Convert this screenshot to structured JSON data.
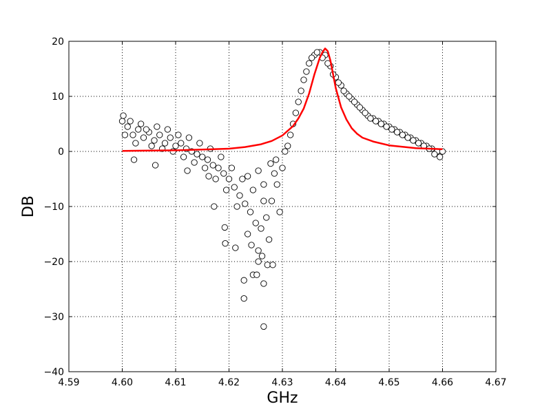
{
  "chart_data": {
    "type": "scatter",
    "title": "",
    "xlabel": "GHz",
    "ylabel": "DB",
    "xlim": [
      4.59,
      4.67
    ],
    "ylim": [
      -40,
      20
    ],
    "xticks": [
      4.59,
      4.6,
      4.61,
      4.62,
      4.63,
      4.64,
      4.65,
      4.66,
      4.67
    ],
    "xtick_labels": [
      "4.59",
      "4.60",
      "4.61",
      "4.62",
      "4.63",
      "4.64",
      "4.65",
      "4.66",
      "4.67"
    ],
    "yticks": [
      20,
      10,
      0,
      -10,
      -20,
      -30,
      -40
    ],
    "ytick_labels": [
      "20",
      "10",
      "0",
      "−10",
      "−20",
      "−30",
      "−40"
    ],
    "grid": true,
    "grid_style": "dotted",
    "series": [
      {
        "kind": "scatter",
        "marker": "open-circle",
        "color": "#000000",
        "points": [
          [
            4.6,
            5.5
          ],
          [
            4.601,
            4.5
          ],
          [
            4.602,
            3.0
          ],
          [
            4.603,
            4.0
          ],
          [
            4.604,
            2.5
          ],
          [
            4.605,
            3.5
          ],
          [
            4.606,
            2.0
          ],
          [
            4.607,
            3.0
          ],
          [
            4.608,
            1.5
          ],
          [
            4.609,
            2.5
          ],
          [
            4.61,
            1.0
          ],
          [
            4.611,
            1.5
          ],
          [
            4.612,
            0.5
          ],
          [
            4.613,
            0.0
          ],
          [
            4.614,
            -0.5
          ],
          [
            4.615,
            -1.0
          ],
          [
            4.616,
            -1.5
          ],
          [
            4.617,
            -2.5
          ],
          [
            4.618,
            -3.0
          ],
          [
            4.619,
            -4.0
          ],
          [
            4.62,
            -5.0
          ],
          [
            4.621,
            -6.5
          ],
          [
            4.622,
            -8.0
          ],
          [
            4.623,
            -9.5
          ],
          [
            4.624,
            -11.0
          ],
          [
            4.625,
            -13.0
          ],
          [
            4.626,
            -14.0
          ],
          [
            4.627,
            -12.0
          ],
          [
            4.628,
            -9.0
          ],
          [
            4.629,
            -6.0
          ],
          [
            4.63,
            -3.0
          ],
          [
            4.631,
            1.0
          ],
          [
            4.632,
            5.0
          ],
          [
            4.633,
            9.0
          ],
          [
            4.634,
            13.0
          ],
          [
            4.635,
            16.0
          ],
          [
            4.636,
            17.5
          ],
          [
            4.637,
            18.0
          ],
          [
            4.638,
            17.5
          ],
          [
            4.639,
            15.5
          ],
          [
            4.64,
            13.5
          ],
          [
            4.641,
            12.0
          ],
          [
            4.642,
            10.5
          ],
          [
            4.643,
            9.5
          ],
          [
            4.644,
            8.5
          ],
          [
            4.645,
            7.5
          ],
          [
            4.646,
            6.5
          ],
          [
            4.647,
            6.0
          ],
          [
            4.648,
            5.5
          ],
          [
            4.649,
            5.0
          ],
          [
            4.65,
            4.5
          ],
          [
            4.651,
            4.0
          ],
          [
            4.652,
            3.5
          ],
          [
            4.653,
            3.0
          ],
          [
            4.654,
            2.5
          ],
          [
            4.655,
            2.0
          ],
          [
            4.656,
            1.5
          ],
          [
            4.657,
            1.0
          ],
          [
            4.658,
            0.5
          ],
          [
            4.659,
            0.0
          ],
          [
            4.66,
            0.0
          ],
          [
            4.6005,
            3.0
          ],
          [
            4.6015,
            5.5
          ],
          [
            4.6025,
            1.5
          ],
          [
            4.6035,
            5.0
          ],
          [
            4.6045,
            4.0
          ],
          [
            4.6055,
            1.0
          ],
          [
            4.6065,
            4.5
          ],
          [
            4.6075,
            0.5
          ],
          [
            4.6085,
            4.0
          ],
          [
            4.6095,
            0.0
          ],
          [
            4.6105,
            3.0
          ],
          [
            4.6115,
            -1.0
          ],
          [
            4.6125,
            2.5
          ],
          [
            4.6135,
            -2.0
          ],
          [
            4.6145,
            1.5
          ],
          [
            4.6155,
            -3.0
          ],
          [
            4.6165,
            0.5
          ],
          [
            4.6175,
            -5.0
          ],
          [
            4.6185,
            -1.0
          ],
          [
            4.6195,
            -7.0
          ],
          [
            4.6205,
            -3.0
          ],
          [
            4.6215,
            -10.0
          ],
          [
            4.6225,
            -5.0
          ],
          [
            4.6235,
            -15.0
          ],
          [
            4.6245,
            -7.0
          ],
          [
            4.6255,
            -18.0
          ],
          [
            4.6265,
            -9.0
          ],
          [
            4.6275,
            -16.0
          ],
          [
            4.6285,
            -4.0
          ],
          [
            4.6295,
            -11.0
          ],
          [
            4.6305,
            0.0
          ],
          [
            4.6315,
            3.0
          ],
          [
            4.6325,
            7.0
          ],
          [
            4.6335,
            11.0
          ],
          [
            4.6345,
            14.5
          ],
          [
            4.6355,
            17.0
          ],
          [
            4.6365,
            18.0
          ],
          [
            4.6375,
            17.0
          ],
          [
            4.6385,
            16.0
          ],
          [
            4.6395,
            14.0
          ],
          [
            4.6405,
            12.5
          ],
          [
            4.6415,
            11.0
          ],
          [
            4.6425,
            10.0
          ],
          [
            4.6435,
            9.0
          ],
          [
            4.6445,
            8.0
          ],
          [
            4.6455,
            7.0
          ],
          [
            4.6465,
            6.0
          ],
          [
            4.6475,
            5.5
          ],
          [
            4.6485,
            5.0
          ],
          [
            4.6495,
            4.5
          ],
          [
            4.6505,
            4.0
          ],
          [
            4.6515,
            3.5
          ],
          [
            4.6525,
            3.0
          ],
          [
            4.6535,
            2.5
          ],
          [
            4.6545,
            2.0
          ],
          [
            4.6555,
            1.5
          ],
          [
            4.6565,
            1.0
          ],
          [
            4.6575,
            0.5
          ],
          [
            4.6585,
            -0.5
          ],
          [
            4.6595,
            -1.0
          ],
          [
            4.6002,
            6.5
          ],
          [
            4.6022,
            -1.5
          ],
          [
            4.6062,
            -2.5
          ],
          [
            4.6122,
            -3.5
          ],
          [
            4.6162,
            -4.5
          ],
          [
            4.6172,
            -10.0
          ],
          [
            4.6192,
            -13.8
          ],
          [
            4.6193,
            -16.7
          ],
          [
            4.6212,
            -17.5
          ],
          [
            4.6228,
            -23.4
          ],
          [
            4.6228,
            -26.7
          ],
          [
            4.6245,
            -22.4
          ],
          [
            4.6252,
            -22.4
          ],
          [
            4.6265,
            -24.0
          ],
          [
            4.6265,
            -31.8
          ],
          [
            4.6255,
            -20.0
          ],
          [
            4.6272,
            -20.6
          ],
          [
            4.6282,
            -20.6
          ],
          [
            4.6262,
            -19.0
          ],
          [
            4.6242,
            -17.0
          ],
          [
            4.6255,
            -3.5
          ],
          [
            4.6265,
            -6.0
          ],
          [
            4.6235,
            -4.5
          ],
          [
            4.6278,
            -2.2
          ],
          [
            4.6288,
            -1.5
          ]
        ]
      },
      {
        "kind": "line",
        "color": "#ff0000",
        "x": [
          4.6,
          4.605,
          4.61,
          4.615,
          4.62,
          4.623,
          4.626,
          4.628,
          4.63,
          4.632,
          4.633,
          4.634,
          4.635,
          4.636,
          4.637,
          4.6375,
          4.638,
          4.6385,
          4.639,
          4.6395,
          4.64,
          4.641,
          4.642,
          4.643,
          4.644,
          4.645,
          4.647,
          4.65,
          4.655,
          4.66
        ],
        "y": [
          0.1,
          0.15,
          0.2,
          0.35,
          0.5,
          0.8,
          1.3,
          1.9,
          2.9,
          4.6,
          6.0,
          7.8,
          10.5,
          14.0,
          17.0,
          18.0,
          18.7,
          18.2,
          16.5,
          14.0,
          11.5,
          8.0,
          5.8,
          4.2,
          3.2,
          2.5,
          1.8,
          1.1,
          0.6,
          0.4
        ]
      }
    ]
  }
}
